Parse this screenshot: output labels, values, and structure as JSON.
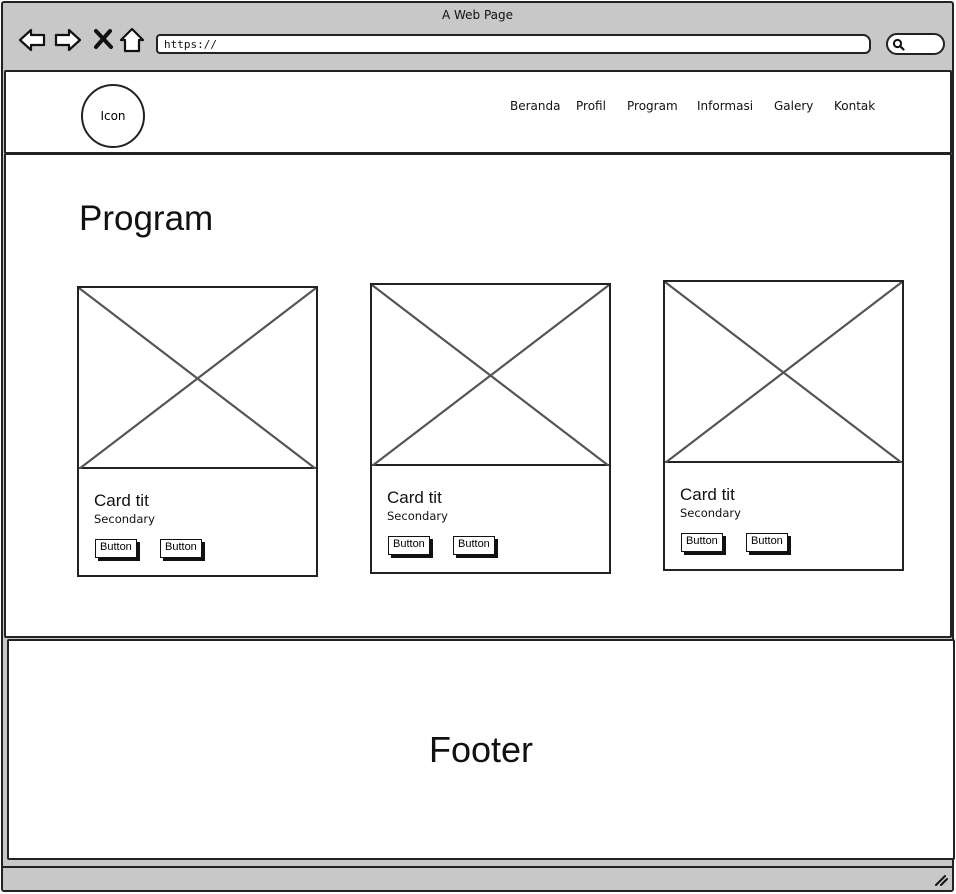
{
  "window": {
    "title": "A Web Page"
  },
  "address_bar": {
    "url": "https://"
  },
  "header": {
    "logo_label": "Icon",
    "nav": [
      {
        "label": "Beranda"
      },
      {
        "label": "Profil"
      },
      {
        "label": "Program"
      },
      {
        "label": "Informasi"
      },
      {
        "label": "Galery"
      },
      {
        "label": "Kontak"
      }
    ]
  },
  "main": {
    "title": "Program",
    "cards": [
      {
        "title": "Card tit",
        "subtitle": "Secondary",
        "button1": "Button",
        "button2": "Button"
      },
      {
        "title": "Card tit",
        "subtitle": "Secondary",
        "button1": "Button",
        "button2": "Button"
      },
      {
        "title": "Card tit",
        "subtitle": "Secondary",
        "button1": "Button",
        "button2": "Button"
      }
    ]
  },
  "footer": {
    "label": "Footer"
  },
  "icons": {
    "back": "arrow-left-icon",
    "forward": "arrow-right-icon",
    "stop": "close-icon",
    "home": "home-icon",
    "search": "search-icon",
    "resize": "resize-grip-icon"
  }
}
